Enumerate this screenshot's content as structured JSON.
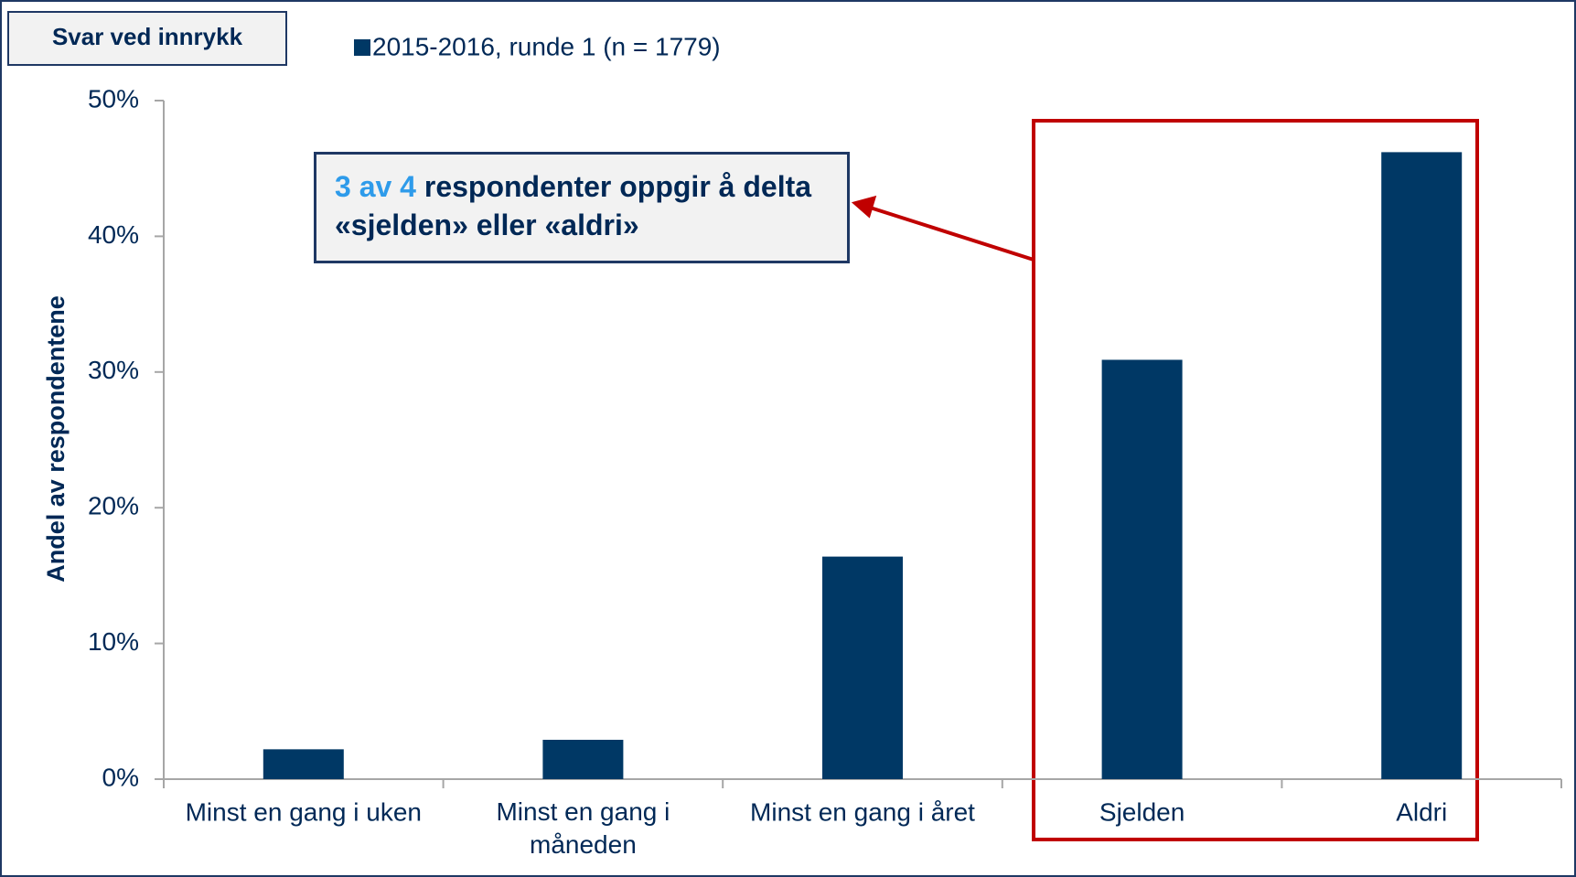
{
  "chart_data": {
    "type": "bar",
    "title": "Svar ved innrykk",
    "y_label": "Andel av respondentene",
    "categories": [
      "Minst en gang i uken",
      "Minst en gang i måneden",
      "Minst en gang i året",
      "Sjelden",
      "Aldri"
    ],
    "series": [
      {
        "name": "2015-2016, runde 1 (n = 1779)",
        "color": "#003865",
        "values": [
          2.2,
          2.9,
          16.4,
          30.9,
          46.2
        ]
      }
    ],
    "ylim": [
      0,
      50
    ],
    "yticks": [
      {
        "value": 0,
        "label": "0%"
      },
      {
        "value": 10,
        "label": "10%"
      },
      {
        "value": 20,
        "label": "20%"
      },
      {
        "value": 30,
        "label": "30%"
      },
      {
        "value": 40,
        "label": "40%"
      },
      {
        "value": 50,
        "label": "50%"
      }
    ],
    "annotation": {
      "highlight": "3 av 4",
      "text": "respondenter oppgir å delta «sjelden» eller «aldri»"
    }
  }
}
